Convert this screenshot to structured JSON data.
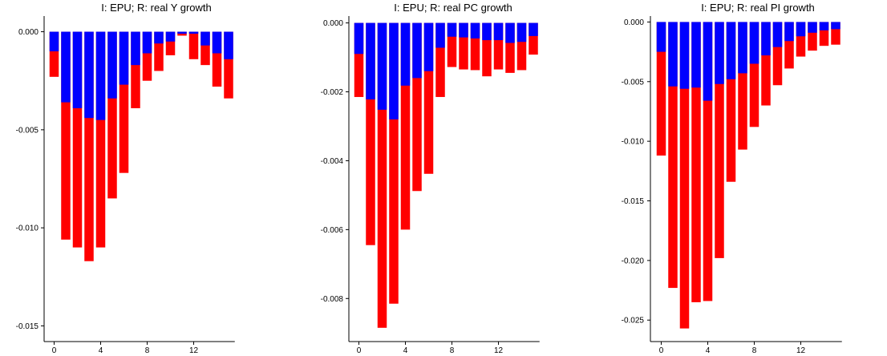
{
  "chart_data": [
    {
      "type": "bar",
      "title": "I: EPU; R: real Y growth",
      "stacked": false,
      "overlap": true,
      "x": [
        0,
        1,
        2,
        3,
        4,
        5,
        6,
        7,
        8,
        9,
        10,
        11,
        12,
        13,
        14,
        15
      ],
      "x_ticks": [
        "0",
        "4",
        "8",
        "12"
      ],
      "y_ticks": [
        "0.000",
        "-0.005",
        "-0.010",
        "-0.015"
      ],
      "ylim": [
        -0.0158,
        0.0008
      ],
      "colors": {
        "red": "#ff0000",
        "blue": "#0000ff"
      },
      "series": [
        {
          "color": "red",
          "values": [
            -0.0023,
            -0.0106,
            -0.011,
            -0.0117,
            -0.011,
            -0.0085,
            -0.0072,
            -0.0039,
            -0.0025,
            -0.002,
            -0.0012,
            -0.0002,
            -0.0014,
            -0.0017,
            -0.0028,
            -0.0034
          ]
        },
        {
          "color": "blue",
          "values": [
            -0.001,
            -0.0036,
            -0.0039,
            -0.0044,
            -0.0045,
            -0.0034,
            -0.0027,
            -0.0017,
            -0.0011,
            -0.0006,
            -0.0005,
            -0.0001,
            -0.0001,
            -0.0007,
            -0.0011,
            -0.0014
          ]
        }
      ]
    },
    {
      "type": "bar",
      "title": "I: EPU; R: real PC growth",
      "stacked": false,
      "overlap": true,
      "x": [
        0,
        1,
        2,
        3,
        4,
        5,
        6,
        7,
        8,
        9,
        10,
        11,
        12,
        13,
        14,
        15
      ],
      "x_ticks": [
        "0",
        "4",
        "8",
        "12"
      ],
      "y_ticks": [
        "0.000",
        "-0.002",
        "-0.004",
        "-0.006",
        "-0.008"
      ],
      "ylim": [
        -0.00925,
        0.0002
      ],
      "colors": {
        "red": "#ff0000",
        "blue": "#0000ff"
      },
      "series": [
        {
          "color": "red",
          "values": [
            -0.00215,
            -0.00645,
            -0.00885,
            -0.00815,
            -0.006,
            -0.00488,
            -0.00438,
            -0.00215,
            -0.00128,
            -0.00135,
            -0.00137,
            -0.00155,
            -0.00135,
            -0.00145,
            -0.00137,
            -0.00092
          ]
        },
        {
          "color": "blue",
          "values": [
            -0.0009,
            -0.00222,
            -0.00252,
            -0.0028,
            -0.00182,
            -0.0016,
            -0.0014,
            -0.00072,
            -0.0004,
            -0.00042,
            -0.00045,
            -0.0005,
            -0.0005,
            -0.00058,
            -0.00055,
            -0.00038
          ]
        }
      ]
    },
    {
      "type": "bar",
      "title": "I: EPU; R: real PI growth",
      "stacked": false,
      "overlap": true,
      "x": [
        0,
        1,
        2,
        3,
        4,
        5,
        6,
        7,
        8,
        9,
        10,
        11,
        12,
        13,
        14,
        15
      ],
      "x_ticks": [
        "0",
        "4",
        "8",
        "12"
      ],
      "y_ticks": [
        "0.000",
        "-0.005",
        "-0.010",
        "-0.015",
        "-0.020",
        "-0.025"
      ],
      "ylim": [
        -0.0268,
        0.0005
      ],
      "colors": {
        "red": "#ff0000",
        "blue": "#0000ff"
      },
      "series": [
        {
          "color": "red",
          "values": [
            -0.0112,
            -0.0223,
            -0.0257,
            -0.0235,
            -0.0234,
            -0.0198,
            -0.0134,
            -0.0107,
            -0.0088,
            -0.007,
            -0.0053,
            -0.0039,
            -0.0029,
            -0.0024,
            -0.002,
            -0.0019
          ]
        },
        {
          "color": "blue",
          "values": [
            -0.0025,
            -0.0054,
            -0.0056,
            -0.0055,
            -0.0066,
            -0.0052,
            -0.0048,
            -0.0043,
            -0.0035,
            -0.0028,
            -0.0021,
            -0.0016,
            -0.0012,
            -0.0009,
            -0.0007,
            -0.0006
          ]
        }
      ]
    }
  ]
}
